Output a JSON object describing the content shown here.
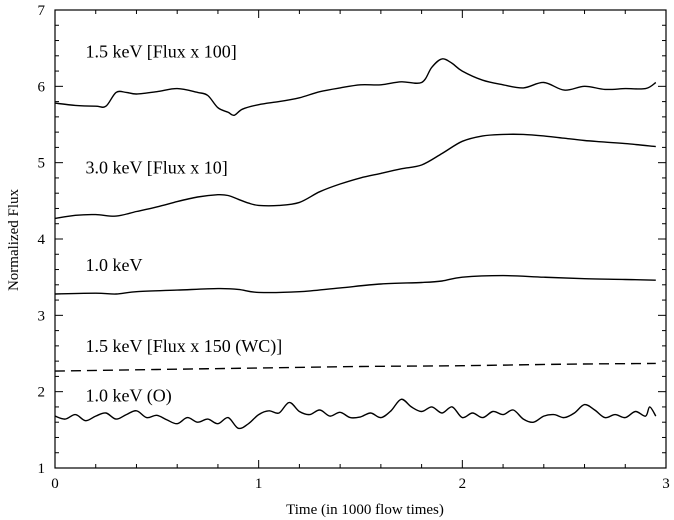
{
  "chart_data": {
    "type": "line",
    "xlabel": "Time (in 1000 flow times)",
    "ylabel": "Normalized Flux",
    "xlim": [
      0,
      3
    ],
    "ylim": [
      1,
      7
    ],
    "x_ticks": [
      "0",
      "1",
      "2",
      "3"
    ],
    "y_ticks": [
      "1",
      "2",
      "3",
      "4",
      "5",
      "6",
      "7"
    ],
    "grid": false,
    "series": [
      {
        "name": "1.5 keV [Flux x 100]",
        "style": "solid",
        "x": [
          0.0,
          0.1,
          0.2,
          0.25,
          0.3,
          0.35,
          0.4,
          0.5,
          0.6,
          0.7,
          0.75,
          0.8,
          0.85,
          0.88,
          0.92,
          1.0,
          1.1,
          1.2,
          1.3,
          1.4,
          1.5,
          1.6,
          1.7,
          1.8,
          1.85,
          1.9,
          1.95,
          2.0,
          2.1,
          2.2,
          2.3,
          2.4,
          2.5,
          2.6,
          2.7,
          2.8,
          2.9,
          2.95
        ],
        "y": [
          5.78,
          5.75,
          5.74,
          5.74,
          5.92,
          5.92,
          5.9,
          5.93,
          5.97,
          5.92,
          5.88,
          5.72,
          5.66,
          5.62,
          5.7,
          5.76,
          5.8,
          5.85,
          5.93,
          5.98,
          6.02,
          6.02,
          6.06,
          6.05,
          6.25,
          6.36,
          6.3,
          6.2,
          6.08,
          6.02,
          5.98,
          6.05,
          5.95,
          6.0,
          5.96,
          5.97,
          5.97,
          6.05
        ]
      },
      {
        "name": "3.0 keV [Flux x 10]",
        "style": "solid",
        "x": [
          0.0,
          0.1,
          0.2,
          0.3,
          0.4,
          0.5,
          0.6,
          0.7,
          0.8,
          0.85,
          0.9,
          0.95,
          1.0,
          1.1,
          1.2,
          1.3,
          1.4,
          1.5,
          1.6,
          1.7,
          1.8,
          1.9,
          2.0,
          2.1,
          2.2,
          2.3,
          2.4,
          2.5,
          2.6,
          2.7,
          2.8,
          2.95
        ],
        "y": [
          4.27,
          4.31,
          4.32,
          4.3,
          4.36,
          4.42,
          4.49,
          4.55,
          4.58,
          4.57,
          4.52,
          4.47,
          4.44,
          4.44,
          4.48,
          4.62,
          4.72,
          4.8,
          4.86,
          4.92,
          4.97,
          5.12,
          5.28,
          5.35,
          5.37,
          5.37,
          5.35,
          5.32,
          5.29,
          5.27,
          5.25,
          5.21
        ]
      },
      {
        "name": "1.0 keV",
        "style": "solid",
        "x": [
          0.0,
          0.2,
          0.3,
          0.4,
          0.6,
          0.8,
          0.9,
          1.0,
          1.2,
          1.4,
          1.6,
          1.8,
          1.9,
          2.0,
          2.2,
          2.4,
          2.6,
          2.8,
          2.95
        ],
        "y": [
          3.28,
          3.29,
          3.28,
          3.31,
          3.33,
          3.35,
          3.34,
          3.3,
          3.31,
          3.36,
          3.41,
          3.43,
          3.45,
          3.5,
          3.52,
          3.5,
          3.48,
          3.47,
          3.46
        ]
      },
      {
        "name": "1.5 keV [Flux x 150 (WC)]",
        "style": "dashed",
        "x": [
          0.0,
          0.5,
          1.0,
          1.5,
          2.0,
          2.5,
          2.95
        ],
        "y": [
          2.27,
          2.29,
          2.31,
          2.33,
          2.34,
          2.36,
          2.37
        ]
      },
      {
        "name": "1.0 keV (O)",
        "style": "solid",
        "x": [
          0.0,
          0.05,
          0.1,
          0.15,
          0.2,
          0.25,
          0.3,
          0.35,
          0.4,
          0.45,
          0.5,
          0.55,
          0.6,
          0.65,
          0.7,
          0.75,
          0.8,
          0.85,
          0.9,
          0.95,
          1.0,
          1.05,
          1.1,
          1.15,
          1.2,
          1.25,
          1.3,
          1.35,
          1.4,
          1.45,
          1.5,
          1.55,
          1.6,
          1.65,
          1.7,
          1.75,
          1.8,
          1.85,
          1.9,
          1.95,
          2.0,
          2.05,
          2.1,
          2.15,
          2.2,
          2.25,
          2.3,
          2.35,
          2.4,
          2.45,
          2.5,
          2.55,
          2.6,
          2.65,
          2.7,
          2.75,
          2.8,
          2.85,
          2.9,
          2.92,
          2.95
        ],
        "y": [
          1.68,
          1.64,
          1.7,
          1.62,
          1.68,
          1.72,
          1.64,
          1.7,
          1.75,
          1.66,
          1.69,
          1.63,
          1.58,
          1.66,
          1.6,
          1.64,
          1.58,
          1.66,
          1.52,
          1.58,
          1.7,
          1.75,
          1.72,
          1.86,
          1.74,
          1.7,
          1.76,
          1.68,
          1.73,
          1.66,
          1.67,
          1.72,
          1.66,
          1.75,
          1.9,
          1.8,
          1.74,
          1.8,
          1.72,
          1.8,
          1.66,
          1.72,
          1.66,
          1.74,
          1.7,
          1.76,
          1.64,
          1.6,
          1.68,
          1.7,
          1.66,
          1.72,
          1.83,
          1.76,
          1.66,
          1.7,
          1.66,
          1.74,
          1.68,
          1.8,
          1.68
        ]
      }
    ],
    "annotations": [
      {
        "text": "1.5 keV [Flux x 100]",
        "x": 0.15,
        "y": 6.38
      },
      {
        "text": "3.0 keV [Flux x 10]",
        "x": 0.15,
        "y": 4.86
      },
      {
        "text": "1.0 keV",
        "x": 0.15,
        "y": 3.58
      },
      {
        "text": "1.5 keV [Flux x 150 (WC)]",
        "x": 0.15,
        "y": 2.52
      },
      {
        "text": "1.0 keV (O)",
        "x": 0.15,
        "y": 1.87
      }
    ]
  }
}
